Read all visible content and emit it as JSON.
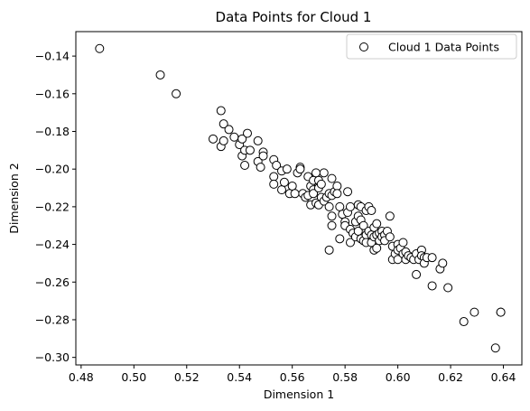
{
  "chart_data": {
    "type": "scatter",
    "title": "Data Points for Cloud 1",
    "xlabel": "Dimension 1",
    "ylabel": "Dimension 2",
    "xlim": [
      0.478,
      0.647
    ],
    "ylim": [
      -0.304,
      -0.127
    ],
    "xticks": [
      0.48,
      0.5,
      0.52,
      0.54,
      0.56,
      0.58,
      0.6,
      0.62,
      0.64
    ],
    "xtick_labels": [
      "0.48",
      "0.50",
      "0.52",
      "0.54",
      "0.56",
      "0.58",
      "0.60",
      "0.62",
      "0.64"
    ],
    "yticks": [
      -0.14,
      -0.16,
      -0.18,
      -0.2,
      -0.22,
      -0.24,
      -0.26,
      -0.28,
      -0.3
    ],
    "ytick_labels": [
      "−0.14",
      "−0.16",
      "−0.18",
      "−0.20",
      "−0.22",
      "−0.24",
      "−0.26",
      "−0.28",
      "−0.30"
    ],
    "grid": false,
    "legend_position": "top-right",
    "series": [
      {
        "name": "Cloud 1 Data Points",
        "marker": "hollow-circle",
        "edge_color": "#000000",
        "face_color": "#ffffff",
        "points": [
          [
            0.487,
            -0.136
          ],
          [
            0.51,
            -0.15
          ],
          [
            0.516,
            -0.16
          ],
          [
            0.53,
            -0.184
          ],
          [
            0.533,
            -0.169
          ],
          [
            0.533,
            -0.188
          ],
          [
            0.534,
            -0.176
          ],
          [
            0.534,
            -0.185
          ],
          [
            0.536,
            -0.179
          ],
          [
            0.538,
            -0.183
          ],
          [
            0.54,
            -0.187
          ],
          [
            0.541,
            -0.184
          ],
          [
            0.541,
            -0.193
          ],
          [
            0.542,
            -0.19
          ],
          [
            0.542,
            -0.198
          ],
          [
            0.543,
            -0.181
          ],
          [
            0.544,
            -0.19
          ],
          [
            0.547,
            -0.185
          ],
          [
            0.547,
            -0.196
          ],
          [
            0.548,
            -0.199
          ],
          [
            0.549,
            -0.191
          ],
          [
            0.549,
            -0.193
          ],
          [
            0.553,
            -0.195
          ],
          [
            0.553,
            -0.204
          ],
          [
            0.553,
            -0.208
          ],
          [
            0.554,
            -0.198
          ],
          [
            0.556,
            -0.201
          ],
          [
            0.556,
            -0.211
          ],
          [
            0.557,
            -0.207
          ],
          [
            0.558,
            -0.2
          ],
          [
            0.559,
            -0.213
          ],
          [
            0.56,
            -0.209
          ],
          [
            0.561,
            -0.213
          ],
          [
            0.562,
            -0.202
          ],
          [
            0.563,
            -0.199
          ],
          [
            0.563,
            -0.2
          ],
          [
            0.564,
            -0.213
          ],
          [
            0.565,
            -0.215
          ],
          [
            0.566,
            -0.204
          ],
          [
            0.566,
            -0.214
          ],
          [
            0.567,
            -0.209
          ],
          [
            0.567,
            -0.219
          ],
          [
            0.568,
            -0.206
          ],
          [
            0.568,
            -0.211
          ],
          [
            0.568,
            -0.213
          ],
          [
            0.569,
            -0.218
          ],
          [
            0.569,
            -0.202
          ],
          [
            0.57,
            -0.206
          ],
          [
            0.57,
            -0.21
          ],
          [
            0.57,
            -0.219
          ],
          [
            0.571,
            -0.215
          ],
          [
            0.571,
            -0.208
          ],
          [
            0.572,
            -0.202
          ],
          [
            0.572,
            -0.217
          ],
          [
            0.573,
            -0.215
          ],
          [
            0.574,
            -0.213
          ],
          [
            0.574,
            -0.22
          ],
          [
            0.574,
            -0.243
          ],
          [
            0.575,
            -0.205
          ],
          [
            0.575,
            -0.214
          ],
          [
            0.575,
            -0.225
          ],
          [
            0.575,
            -0.23
          ],
          [
            0.576,
            -0.212
          ],
          [
            0.577,
            -0.209
          ],
          [
            0.577,
            -0.213
          ],
          [
            0.578,
            -0.22
          ],
          [
            0.578,
            -0.237
          ],
          [
            0.579,
            -0.224
          ],
          [
            0.58,
            -0.228
          ],
          [
            0.58,
            -0.23
          ],
          [
            0.581,
            -0.212
          ],
          [
            0.581,
            -0.223
          ],
          [
            0.582,
            -0.22
          ],
          [
            0.582,
            -0.232
          ],
          [
            0.582,
            -0.239
          ],
          [
            0.583,
            -0.234
          ],
          [
            0.584,
            -0.228
          ],
          [
            0.584,
            -0.236
          ],
          [
            0.585,
            -0.219
          ],
          [
            0.585,
            -0.225
          ],
          [
            0.585,
            -0.233
          ],
          [
            0.586,
            -0.22
          ],
          [
            0.586,
            -0.227
          ],
          [
            0.586,
            -0.237
          ],
          [
            0.587,
            -0.23
          ],
          [
            0.587,
            -0.238
          ],
          [
            0.588,
            -0.222
          ],
          [
            0.588,
            -0.235
          ],
          [
            0.588,
            -0.239
          ],
          [
            0.589,
            -0.22
          ],
          [
            0.589,
            -0.233
          ],
          [
            0.59,
            -0.222
          ],
          [
            0.59,
            -0.235
          ],
          [
            0.59,
            -0.239
          ],
          [
            0.591,
            -0.231
          ],
          [
            0.591,
            -0.236
          ],
          [
            0.591,
            -0.243
          ],
          [
            0.592,
            -0.229
          ],
          [
            0.592,
            -0.235
          ],
          [
            0.592,
            -0.242
          ],
          [
            0.593,
            -0.234
          ],
          [
            0.593,
            -0.238
          ],
          [
            0.594,
            -0.233
          ],
          [
            0.594,
            -0.236
          ],
          [
            0.595,
            -0.235
          ],
          [
            0.595,
            -0.238
          ],
          [
            0.596,
            -0.233
          ],
          [
            0.597,
            -0.225
          ],
          [
            0.597,
            -0.236
          ],
          [
            0.598,
            -0.241
          ],
          [
            0.598,
            -0.248
          ],
          [
            0.599,
            -0.245
          ],
          [
            0.6,
            -0.24
          ],
          [
            0.6,
            -0.243
          ],
          [
            0.6,
            -0.248
          ],
          [
            0.601,
            -0.242
          ],
          [
            0.602,
            -0.239
          ],
          [
            0.602,
            -0.245
          ],
          [
            0.603,
            -0.244
          ],
          [
            0.603,
            -0.248
          ],
          [
            0.604,
            -0.246
          ],
          [
            0.605,
            -0.247
          ],
          [
            0.606,
            -0.248
          ],
          [
            0.607,
            -0.245
          ],
          [
            0.607,
            -0.256
          ],
          [
            0.608,
            -0.248
          ],
          [
            0.609,
            -0.243
          ],
          [
            0.609,
            -0.246
          ],
          [
            0.61,
            -0.247
          ],
          [
            0.61,
            -0.25
          ],
          [
            0.611,
            -0.247
          ],
          [
            0.613,
            -0.247
          ],
          [
            0.613,
            -0.262
          ],
          [
            0.616,
            -0.253
          ],
          [
            0.617,
            -0.25
          ],
          [
            0.619,
            -0.263
          ],
          [
            0.625,
            -0.281
          ],
          [
            0.629,
            -0.276
          ],
          [
            0.637,
            -0.295
          ],
          [
            0.639,
            -0.276
          ],
          [
            0.639,
            -0.276
          ]
        ]
      }
    ]
  }
}
